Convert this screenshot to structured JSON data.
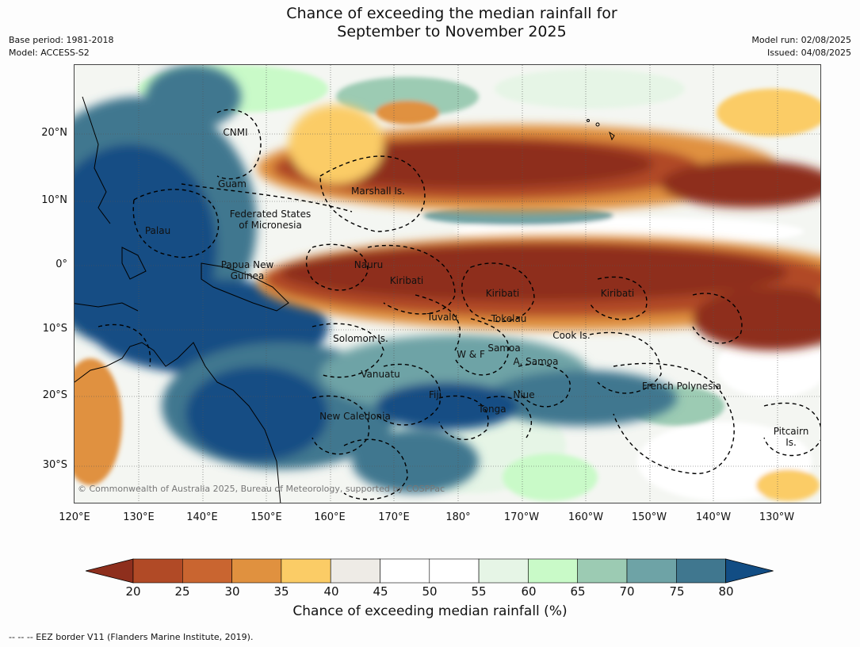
{
  "title": {
    "line1": "Chance of exceeding the median rainfall for",
    "line2": "September to November 2025"
  },
  "meta": {
    "base_period": "Base period: 1981-2018",
    "model": "Model: ACCESS-S2",
    "model_run": "Model run: 02/08/2025",
    "issued": "Issued: 04/08/2025"
  },
  "map": {
    "lat_labels": [
      "20°N",
      "10°N",
      "0°",
      "10°S",
      "20°S",
      "30°S"
    ],
    "lon_labels": [
      "120°E",
      "130°E",
      "140°E",
      "150°E",
      "160°E",
      "170°E",
      "180°",
      "170°W",
      "160°W",
      "150°W",
      "140°W",
      "130°W"
    ],
    "places": [
      "CNMI",
      "Guam",
      "Marshall Is.",
      "Federated States",
      "of Micronesia",
      "Palau",
      "Papua New",
      "Guinea",
      "Nauru",
      "Kiribati",
      "Kiribati",
      "Kiribati",
      "Tuvalu",
      "Tokelau",
      "Cook Is.",
      "Solomon Is.",
      "Samoa",
      "W & F",
      "A. Samoa",
      "Vanuatu",
      "Fiji",
      "Niue",
      "French Polynesia",
      "Tonga",
      "New Caledonia",
      "Pitcairn",
      "Is."
    ],
    "copyright": "© Commonwealth of Australia 2025, Bureau of Meteorology, supported by COSPPac"
  },
  "colorbar": {
    "ticks": [
      "20",
      "25",
      "30",
      "35",
      "40",
      "45",
      "50",
      "55",
      "60",
      "65",
      "70",
      "75",
      "80"
    ],
    "colors": [
      "#8e2f1d",
      "#b14a26",
      "#c96530",
      "#e0913f",
      "#fbcc66",
      "#eeebe6",
      "#ffffff",
      "#ffffff",
      "#e6f5e6",
      "#c9fac8",
      "#9ccbb3",
      "#6ea3a6",
      "#40778f",
      "#124d84"
    ],
    "title": "Chance of exceeding median rainfall (%)"
  },
  "footnote": "--  --  -- EEZ border V11 (Flanders Marine Institute, 2019)."
}
